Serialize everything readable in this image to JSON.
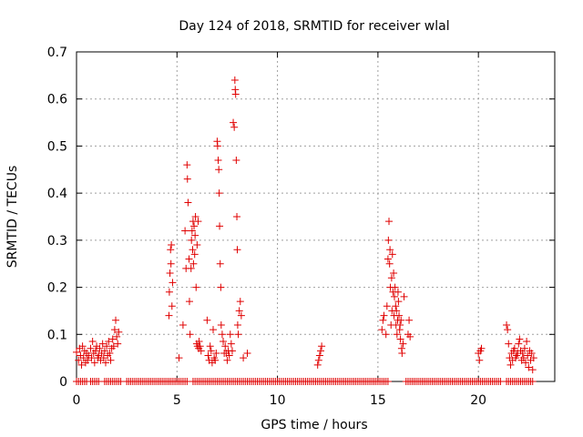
{
  "chart_data": {
    "type": "scatter",
    "title": "Day 124 of 2018, SRMTID for receiver wlal",
    "xlabel": "GPS time / hours",
    "ylabel": "SRMTID / TECUs",
    "xlim": [
      0,
      23.8
    ],
    "ylim": [
      0,
      0.7
    ],
    "xticks": [
      0,
      5,
      10,
      15,
      20
    ],
    "yticks": [
      0,
      0.1,
      0.2,
      0.3,
      0.4,
      0.5,
      0.6,
      0.7
    ],
    "xtick_labels": [
      "0",
      "5",
      "10",
      "15",
      "20"
    ],
    "ytick_labels": [
      "0",
      "0.1",
      "0.2",
      "0.3",
      "0.4",
      "0.5",
      "0.6",
      "0.7"
    ],
    "grid": true,
    "marker": "+",
    "color": "#e00000",
    "series": [
      {
        "name": "wlal",
        "x": [
          0.0,
          0.1,
          0.15,
          0.2,
          0.25,
          0.3,
          0.35,
          0.4,
          0.45,
          0.5,
          0.55,
          0.6,
          0.7,
          0.75,
          0.8,
          0.85,
          0.9,
          0.95,
          1.0,
          1.05,
          1.1,
          1.15,
          1.2,
          1.25,
          1.3,
          1.35,
          1.4,
          1.45,
          1.5,
          1.55,
          1.6,
          1.65,
          1.7,
          1.75,
          1.8,
          1.85,
          1.9,
          1.95,
          2.0,
          2.05,
          2.1,
          4.6,
          4.62,
          4.65,
          4.68,
          4.7,
          4.72,
          4.75,
          4.78,
          5.1,
          5.3,
          5.4,
          5.45,
          5.5,
          5.52,
          5.55,
          5.6,
          5.62,
          5.65,
          5.7,
          5.72,
          5.75,
          5.78,
          5.8,
          5.82,
          5.85,
          5.88,
          5.9,
          5.92,
          5.95,
          5.98,
          6.0,
          6.02,
          6.05,
          6.08,
          6.1,
          6.15,
          6.2,
          6.5,
          6.55,
          6.6,
          6.65,
          6.7,
          6.75,
          6.8,
          6.85,
          6.9,
          6.95,
          7.0,
          7.02,
          7.05,
          7.08,
          7.1,
          7.12,
          7.15,
          7.18,
          7.2,
          7.25,
          7.3,
          7.35,
          7.4,
          7.45,
          7.5,
          7.55,
          7.6,
          7.65,
          7.7,
          7.75,
          7.8,
          7.85,
          7.88,
          7.9,
          7.92,
          7.95,
          7.98,
          8.0,
          8.02,
          8.05,
          8.1,
          8.15,
          8.2,
          8.3,
          8.5,
          12.0,
          12.05,
          12.1,
          12.15,
          12.2,
          15.2,
          15.25,
          15.3,
          15.4,
          15.45,
          15.5,
          15.52,
          15.55,
          15.58,
          15.6,
          15.62,
          15.65,
          15.68,
          15.7,
          15.72,
          15.75,
          15.78,
          15.8,
          15.82,
          15.85,
          15.88,
          15.9,
          15.92,
          15.95,
          15.98,
          16.0,
          16.02,
          16.05,
          16.08,
          16.1,
          16.12,
          16.15,
          16.18,
          16.2,
          16.25,
          16.3,
          16.5,
          16.55,
          16.6,
          20.0,
          20.05,
          20.1,
          20.15,
          21.4,
          21.45,
          21.5,
          21.55,
          21.6,
          21.65,
          21.7,
          21.75,
          21.8,
          21.85,
          21.9,
          21.95,
          22.0,
          22.05,
          22.1,
          22.15,
          22.2,
          22.25,
          22.3,
          22.35,
          22.4,
          22.45,
          22.5,
          22.55,
          22.6,
          22.65,
          22.7,
          22.75
        ],
        "y": [
          0.062,
          0.045,
          0.07,
          0.055,
          0.035,
          0.075,
          0.05,
          0.065,
          0.04,
          0.06,
          0.045,
          0.055,
          0.07,
          0.05,
          0.085,
          0.06,
          0.04,
          0.065,
          0.075,
          0.05,
          0.055,
          0.07,
          0.045,
          0.06,
          0.08,
          0.05,
          0.065,
          0.04,
          0.075,
          0.055,
          0.085,
          0.06,
          0.045,
          0.07,
          0.09,
          0.075,
          0.11,
          0.13,
          0.095,
          0.08,
          0.105,
          0.14,
          0.19,
          0.23,
          0.28,
          0.25,
          0.29,
          0.16,
          0.21,
          0.05,
          0.12,
          0.32,
          0.24,
          0.46,
          0.43,
          0.38,
          0.26,
          0.17,
          0.1,
          0.24,
          0.3,
          0.32,
          0.28,
          0.34,
          0.25,
          0.33,
          0.27,
          0.31,
          0.35,
          0.2,
          0.08,
          0.29,
          0.075,
          0.34,
          0.07,
          0.085,
          0.075,
          0.065,
          0.13,
          0.055,
          0.045,
          0.075,
          0.065,
          0.04,
          0.11,
          0.05,
          0.045,
          0.06,
          0.51,
          0.5,
          0.47,
          0.45,
          0.4,
          0.33,
          0.25,
          0.2,
          0.12,
          0.1,
          0.085,
          0.06,
          0.075,
          0.06,
          0.045,
          0.065,
          0.055,
          0.1,
          0.08,
          0.065,
          0.55,
          0.54,
          0.64,
          0.62,
          0.61,
          0.47,
          0.35,
          0.28,
          0.12,
          0.1,
          0.15,
          0.17,
          0.14,
          0.05,
          0.06,
          0.035,
          0.045,
          0.055,
          0.065,
          0.075,
          0.11,
          0.13,
          0.14,
          0.1,
          0.16,
          0.26,
          0.3,
          0.34,
          0.25,
          0.28,
          0.2,
          0.12,
          0.22,
          0.15,
          0.27,
          0.19,
          0.23,
          0.14,
          0.18,
          0.2,
          0.16,
          0.12,
          0.15,
          0.1,
          0.13,
          0.19,
          0.17,
          0.14,
          0.11,
          0.12,
          0.09,
          0.13,
          0.07,
          0.06,
          0.08,
          0.18,
          0.1,
          0.13,
          0.095,
          0.06,
          0.045,
          0.065,
          0.07,
          0.12,
          0.11,
          0.08,
          0.05,
          0.035,
          0.06,
          0.045,
          0.065,
          0.07,
          0.05,
          0.055,
          0.06,
          0.08,
          0.09,
          0.065,
          0.045,
          0.06,
          0.05,
          0.07,
          0.04,
          0.085,
          0.055,
          0.03,
          0.065,
          0.045,
          0.06,
          0.025,
          0.05
        ]
      },
      {
        "name": "zero-level",
        "x_start": 0.0,
        "x_end": 22.7,
        "x_step": 0.1,
        "y": 0,
        "gaps": [
          [
            0.55,
            0.65
          ],
          [
            1.15,
            1.3
          ],
          [
            2.3,
            2.45
          ],
          [
            5.55,
            5.75
          ],
          [
            15.55,
            16.3
          ],
          [
            21.2,
            21.3
          ]
        ]
      }
    ]
  }
}
